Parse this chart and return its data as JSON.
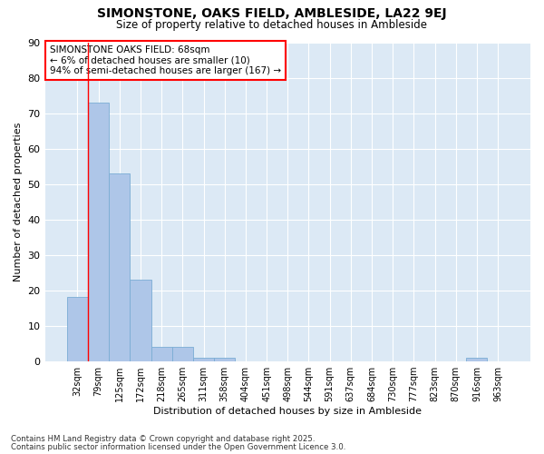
{
  "title_line1": "SIMONSTONE, OAKS FIELD, AMBLESIDE, LA22 9EJ",
  "title_line2": "Size of property relative to detached houses in Ambleside",
  "xlabel": "Distribution of detached houses by size in Ambleside",
  "ylabel": "Number of detached properties",
  "categories": [
    "32sqm",
    "79sqm",
    "125sqm",
    "172sqm",
    "218sqm",
    "265sqm",
    "311sqm",
    "358sqm",
    "404sqm",
    "451sqm",
    "498sqm",
    "544sqm",
    "591sqm",
    "637sqm",
    "684sqm",
    "730sqm",
    "777sqm",
    "823sqm",
    "870sqm",
    "916sqm",
    "963sqm"
  ],
  "values": [
    18,
    73,
    53,
    23,
    4,
    4,
    1,
    1,
    0,
    0,
    0,
    0,
    0,
    0,
    0,
    0,
    0,
    0,
    0,
    1,
    0
  ],
  "bar_color": "#aec6e8",
  "bar_edge_color": "#7aadd4",
  "plot_bg_color": "#dce9f5",
  "fig_bg_color": "#ffffff",
  "grid_color": "#ffffff",
  "red_line_x": 1,
  "annotation_box_text": "SIMONSTONE OAKS FIELD: 68sqm\n← 6% of detached houses are smaller (10)\n94% of semi-detached houses are larger (167) →",
  "ylim": [
    0,
    90
  ],
  "yticks": [
    0,
    10,
    20,
    30,
    40,
    50,
    60,
    70,
    80,
    90
  ],
  "footnote_line1": "Contains HM Land Registry data © Crown copyright and database right 2025.",
  "footnote_line2": "Contains public sector information licensed under the Open Government Licence 3.0."
}
